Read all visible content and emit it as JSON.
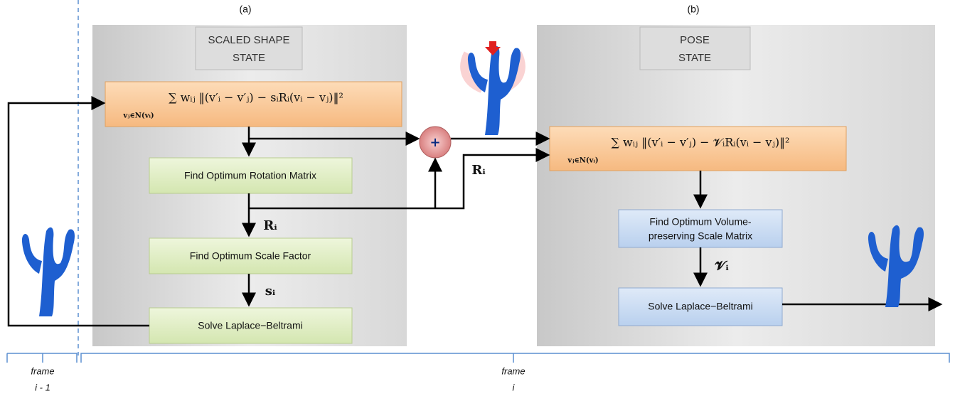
{
  "panel_a": {
    "label": "(a)",
    "header": [
      "SCALED SHAPE",
      "STATE"
    ],
    "formula": {
      "main": "∑ wᵢⱼ ‖(v′ᵢ − v′ⱼ) − sᵢRᵢ(vᵢ − vⱼ)‖²",
      "sub": "vⱼ∈N(vᵢ)"
    },
    "steps": [
      "Find Optimum Rotation Matrix",
      "Find Optimum Scale Factor",
      "Solve Laplace−Beltrami"
    ],
    "edge_labels": [
      "Rᵢ",
      "sᵢ"
    ]
  },
  "combine": {
    "symbol": "+",
    "edge_label": "Rᵢ"
  },
  "panel_b": {
    "label": "(b)",
    "header": [
      "POSE",
      "STATE"
    ],
    "formula": {
      "main": "∑ wᵢⱼ ‖(v′ᵢ − v′ⱼ) − 𝓥ᵢRᵢ(vᵢ − vⱼ)‖²",
      "sub": "vⱼ∈N(vᵢ)"
    },
    "steps": [
      [
        "Find Optimum Volume-",
        "preserving Scale Matrix"
      ],
      "Solve Laplace−Beltrami"
    ],
    "edge_labels": [
      "𝓥ᵢ"
    ]
  },
  "frames": [
    [
      "frame",
      "i - 1"
    ],
    [
      "frame",
      "i"
    ]
  ]
}
